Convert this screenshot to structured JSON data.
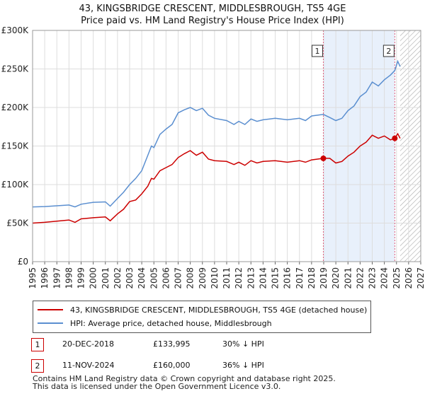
{
  "header": {
    "title_line1": "43, KINGSBRIDGE CRESCENT, MIDDLESBROUGH, TS5 4GE",
    "title_line2": "Price paid vs. HM Land Registry's House Price Index (HPI)"
  },
  "colors": {
    "property": "#cc0000",
    "hpi": "#5b8fd0",
    "highlight": "#e8f0fb",
    "marker_line": "#e06080",
    "grid": "#dddddd",
    "hatch": "#aaaaaa"
  },
  "chart_data": {
    "type": "line",
    "x_range": [
      1995,
      2027
    ],
    "ylim": [
      0,
      300000
    ],
    "y_ticks": [
      {
        "value": 0,
        "label": "£0"
      },
      {
        "value": 50000,
        "label": "£50K"
      },
      {
        "value": 100000,
        "label": "£100K"
      },
      {
        "value": 150000,
        "label": "£150K"
      },
      {
        "value": 200000,
        "label": "£200K"
      },
      {
        "value": 250000,
        "label": "£250K"
      },
      {
        "value": 300000,
        "label": "£300K"
      }
    ],
    "x_ticks": [
      1995,
      1996,
      1997,
      1998,
      1999,
      2000,
      2001,
      2002,
      2003,
      2004,
      2005,
      2006,
      2007,
      2008,
      2009,
      2010,
      2011,
      2012,
      2013,
      2014,
      2015,
      2016,
      2017,
      2018,
      2019,
      2020,
      2021,
      2022,
      2023,
      2024,
      2025,
      2026,
      2027
    ],
    "highlight_span": [
      2018.97,
      2024.86
    ],
    "data_end": 2025.3,
    "series": [
      {
        "name": "43, KINGSBRIDGE CRESCENT, MIDDLESBROUGH, TS5 4GE (detached house)",
        "color": "#cc0000",
        "points": [
          [
            1995,
            50000
          ],
          [
            1996,
            51000
          ],
          [
            1997,
            52500
          ],
          [
            1998,
            54000
          ],
          [
            1998.5,
            51000
          ],
          [
            1999,
            55500
          ],
          [
            2000,
            57000
          ],
          [
            2001,
            58000
          ],
          [
            2001.4,
            53000
          ],
          [
            2002,
            62000
          ],
          [
            2002.5,
            68000
          ],
          [
            2003,
            78000
          ],
          [
            2003.5,
            80000
          ],
          [
            2004,
            88000
          ],
          [
            2004.5,
            98000
          ],
          [
            2004.8,
            108000
          ],
          [
            2005,
            107000
          ],
          [
            2005.5,
            118000
          ],
          [
            2006,
            122000
          ],
          [
            2006.5,
            126000
          ],
          [
            2007,
            135000
          ],
          [
            2007.5,
            140000
          ],
          [
            2008,
            144000
          ],
          [
            2008.5,
            138000
          ],
          [
            2009,
            142000
          ],
          [
            2009.5,
            133000
          ],
          [
            2010,
            131000
          ],
          [
            2011,
            130000
          ],
          [
            2011.6,
            126000
          ],
          [
            2012,
            129000
          ],
          [
            2012.5,
            125000
          ],
          [
            2013,
            131000
          ],
          [
            2013.5,
            128000
          ],
          [
            2014,
            130000
          ],
          [
            2015,
            131000
          ],
          [
            2016,
            129000
          ],
          [
            2017,
            131000
          ],
          [
            2017.5,
            129000
          ],
          [
            2018,
            132000
          ],
          [
            2018.97,
            133995
          ],
          [
            2019.5,
            134000
          ],
          [
            2020,
            128000
          ],
          [
            2020.5,
            130000
          ],
          [
            2021,
            137000
          ],
          [
            2021.5,
            142000
          ],
          [
            2022,
            150000
          ],
          [
            2022.5,
            155000
          ],
          [
            2023,
            164000
          ],
          [
            2023.5,
            160000
          ],
          [
            2024,
            163000
          ],
          [
            2024.5,
            158000
          ],
          [
            2024.86,
            160000
          ],
          [
            2025.1,
            166000
          ],
          [
            2025.3,
            160000
          ]
        ]
      },
      {
        "name": "HPI: Average price, detached house, Middlesbrough",
        "color": "#5b8fd0",
        "points": [
          [
            1995,
            71000
          ],
          [
            1996,
            71500
          ],
          [
            1997,
            72500
          ],
          [
            1998,
            73500
          ],
          [
            1998.5,
            71000
          ],
          [
            1999,
            74500
          ],
          [
            2000,
            77000
          ],
          [
            2001,
            77500
          ],
          [
            2001.4,
            72000
          ],
          [
            2002,
            82000
          ],
          [
            2002.5,
            90000
          ],
          [
            2003,
            100000
          ],
          [
            2003.5,
            108000
          ],
          [
            2004,
            118000
          ],
          [
            2004.5,
            138000
          ],
          [
            2004.8,
            150000
          ],
          [
            2005,
            148000
          ],
          [
            2005.5,
            165000
          ],
          [
            2006,
            172000
          ],
          [
            2006.5,
            178000
          ],
          [
            2007,
            193000
          ],
          [
            2007.5,
            197000
          ],
          [
            2008,
            200000
          ],
          [
            2008.5,
            196000
          ],
          [
            2009,
            199000
          ],
          [
            2009.5,
            190000
          ],
          [
            2010,
            186000
          ],
          [
            2011,
            183000
          ],
          [
            2011.6,
            178000
          ],
          [
            2012,
            182000
          ],
          [
            2012.5,
            178000
          ],
          [
            2013,
            185000
          ],
          [
            2013.5,
            182000
          ],
          [
            2014,
            184000
          ],
          [
            2015,
            186000
          ],
          [
            2016,
            184000
          ],
          [
            2017,
            186000
          ],
          [
            2017.5,
            183000
          ],
          [
            2018,
            189000
          ],
          [
            2018.97,
            191000
          ],
          [
            2019.5,
            187000
          ],
          [
            2020,
            183000
          ],
          [
            2020.5,
            186000
          ],
          [
            2021,
            196000
          ],
          [
            2021.5,
            202000
          ],
          [
            2022,
            214000
          ],
          [
            2022.5,
            220000
          ],
          [
            2023,
            233000
          ],
          [
            2023.5,
            228000
          ],
          [
            2024,
            236000
          ],
          [
            2024.5,
            242000
          ],
          [
            2024.86,
            248000
          ],
          [
            2025.1,
            260000
          ],
          [
            2025.3,
            253000
          ]
        ]
      }
    ],
    "markers": [
      {
        "label": "1",
        "x": 2018.97,
        "y": 133995
      },
      {
        "label": "2",
        "x": 2024.86,
        "y": 160000
      }
    ]
  },
  "legend": {
    "property_label": "43, KINGSBRIDGE CRESCENT, MIDDLESBROUGH, TS5 4GE (detached house)",
    "hpi_label": "HPI: Average price, detached house, Middlesbrough"
  },
  "annotations": [
    {
      "num": "1",
      "date": "20-DEC-2018",
      "price": "£133,995",
      "hpi": "30% ↓ HPI"
    },
    {
      "num": "2",
      "date": "11-NOV-2024",
      "price": "£160,000",
      "hpi": "36% ↓ HPI"
    }
  ],
  "footer": {
    "line1": "Contains HM Land Registry data © Crown copyright and database right 2025.",
    "line2": "This data is licensed under the Open Government Licence v3.0."
  }
}
